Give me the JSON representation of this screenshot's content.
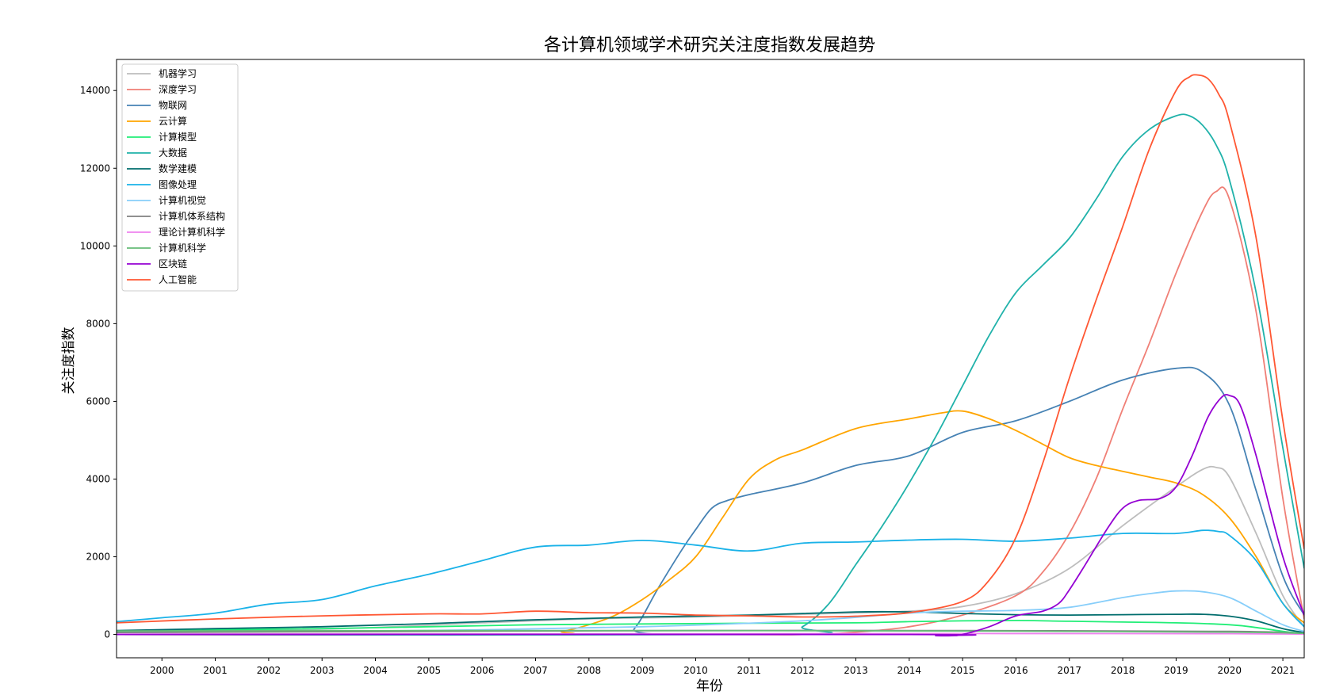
{
  "chart_data": {
    "type": "line",
    "title": "各计算机领域学术研究关注度指数发展趋势",
    "xlabel": "年份",
    "ylabel": "关注度指数",
    "xlim": [
      1999.15,
      2021.4
    ],
    "ylim": [
      -600,
      14800
    ],
    "x_ticks": [
      "2000",
      "2001",
      "2002",
      "2003",
      "2004",
      "2005",
      "2006",
      "2007",
      "2008",
      "2009",
      "2010",
      "2011",
      "2012",
      "2013",
      "2014",
      "2015",
      "2016",
      "2017",
      "2018",
      "2019",
      "2020",
      "2021"
    ],
    "y_ticks": [
      0,
      2000,
      4000,
      6000,
      8000,
      10000,
      12000,
      14000
    ],
    "grid": false,
    "legend_position": "top-left",
    "series": [
      {
        "name": "机器学习",
        "color": "#bdbdbd",
        "points": [
          [
            1999.15,
            80
          ],
          [
            2000,
            90
          ],
          [
            2002,
            110
          ],
          [
            2004,
            180
          ],
          [
            2006,
            300
          ],
          [
            2008,
            400
          ],
          [
            2010,
            450
          ],
          [
            2012,
            520
          ],
          [
            2014,
            600
          ],
          [
            2015,
            720
          ],
          [
            2016,
            1050
          ],
          [
            2017,
            1700
          ],
          [
            2018,
            2800
          ],
          [
            2019,
            3800
          ],
          [
            2019.5,
            4250
          ],
          [
            2019.75,
            4300
          ],
          [
            2020,
            4050
          ],
          [
            2020.5,
            2600
          ],
          [
            2021,
            1000
          ],
          [
            2021.4,
            200
          ]
        ]
      },
      {
        "name": "深度学习",
        "color": "#f07f76",
        "points": [
          [
            1999.15,
            0
          ],
          [
            2010,
            0
          ],
          [
            2012,
            0
          ],
          [
            2013,
            60
          ],
          [
            2014,
            200
          ],
          [
            2015,
            500
          ],
          [
            2016,
            1000
          ],
          [
            2016.5,
            1600
          ],
          [
            2017,
            2600
          ],
          [
            2017.5,
            4000
          ],
          [
            2018,
            5800
          ],
          [
            2018.5,
            7500
          ],
          [
            2019,
            9300
          ],
          [
            2019.5,
            10900
          ],
          [
            2019.75,
            11400
          ],
          [
            2020,
            11200
          ],
          [
            2020.5,
            8300
          ],
          [
            2021,
            3500
          ],
          [
            2021.4,
            400
          ]
        ]
      },
      {
        "name": "物联网",
        "color": "#4682b4",
        "points": [
          [
            1999.15,
            0
          ],
          [
            2008.5,
            0
          ],
          [
            2008.85,
            150
          ],
          [
            2009.3,
            1200
          ],
          [
            2009.75,
            2200
          ],
          [
            2010,
            2700
          ],
          [
            2010.3,
            3250
          ],
          [
            2010.6,
            3450
          ],
          [
            2011,
            3600
          ],
          [
            2012,
            3900
          ],
          [
            2013,
            4350
          ],
          [
            2014,
            4600
          ],
          [
            2015,
            5200
          ],
          [
            2016,
            5500
          ],
          [
            2017,
            6000
          ],
          [
            2018,
            6550
          ],
          [
            2019,
            6850
          ],
          [
            2019.5,
            6750
          ],
          [
            2020,
            5900
          ],
          [
            2020.5,
            3700
          ],
          [
            2021,
            1500
          ],
          [
            2021.4,
            500
          ]
        ]
      },
      {
        "name": "云计算",
        "color": "#ffa500",
        "points": [
          [
            1999.15,
            0
          ],
          [
            2007,
            0
          ],
          [
            2007.5,
            80
          ],
          [
            2008,
            250
          ],
          [
            2008.5,
            500
          ],
          [
            2009,
            900
          ],
          [
            2009.5,
            1400
          ],
          [
            2010,
            2000
          ],
          [
            2010.5,
            3000
          ],
          [
            2011,
            4000
          ],
          [
            2011.5,
            4500
          ],
          [
            2012,
            4750
          ],
          [
            2013,
            5300
          ],
          [
            2014,
            5550
          ],
          [
            2014.6,
            5700
          ],
          [
            2015,
            5750
          ],
          [
            2015.5,
            5550
          ],
          [
            2016,
            5250
          ],
          [
            2016.5,
            4900
          ],
          [
            2017,
            4550
          ],
          [
            2017.5,
            4350
          ],
          [
            2018,
            4200
          ],
          [
            2018.5,
            4050
          ],
          [
            2019,
            3900
          ],
          [
            2019.5,
            3600
          ],
          [
            2020,
            3000
          ],
          [
            2020.5,
            2000
          ],
          [
            2021,
            800
          ],
          [
            2021.4,
            300
          ]
        ]
      },
      {
        "name": "计算模型",
        "color": "#22ee77",
        "points": [
          [
            1999.15,
            80
          ],
          [
            2001,
            120
          ],
          [
            2003,
            150
          ],
          [
            2005,
            200
          ],
          [
            2007,
            250
          ],
          [
            2009,
            270
          ],
          [
            2011,
            290
          ],
          [
            2013,
            300
          ],
          [
            2014,
            330
          ],
          [
            2015,
            350
          ],
          [
            2016,
            360
          ],
          [
            2017,
            340
          ],
          [
            2018,
            320
          ],
          [
            2019,
            300
          ],
          [
            2020,
            250
          ],
          [
            2020.5,
            180
          ],
          [
            2021,
            80
          ],
          [
            2021.4,
            30
          ]
        ]
      },
      {
        "name": "大数据",
        "color": "#20b2aa",
        "points": [
          [
            1999.15,
            0
          ],
          [
            2011.5,
            0
          ],
          [
            2012,
            200
          ],
          [
            2012.5,
            800
          ],
          [
            2013,
            1800
          ],
          [
            2013.5,
            2800
          ],
          [
            2014,
            3900
          ],
          [
            2014.5,
            5100
          ],
          [
            2015,
            6400
          ],
          [
            2015.5,
            7700
          ],
          [
            2016,
            8800
          ],
          [
            2016.5,
            9500
          ],
          [
            2017,
            10200
          ],
          [
            2017.5,
            11200
          ],
          [
            2018,
            12300
          ],
          [
            2018.5,
            13000
          ],
          [
            2019,
            13350
          ],
          [
            2019.25,
            13350
          ],
          [
            2019.5,
            13100
          ],
          [
            2019.75,
            12600
          ],
          [
            2020,
            11700
          ],
          [
            2020.5,
            8800
          ],
          [
            2021,
            4800
          ],
          [
            2021.4,
            1700
          ]
        ]
      },
      {
        "name": "数学建模",
        "color": "#006d6d",
        "points": [
          [
            1999.15,
            100
          ],
          [
            2001,
            150
          ],
          [
            2003,
            200
          ],
          [
            2005,
            280
          ],
          [
            2007,
            380
          ],
          [
            2009,
            450
          ],
          [
            2011,
            500
          ],
          [
            2013,
            580
          ],
          [
            2014,
            580
          ],
          [
            2015,
            540
          ],
          [
            2016,
            510
          ],
          [
            2017,
            500
          ],
          [
            2018,
            510
          ],
          [
            2019,
            520
          ],
          [
            2019.5,
            520
          ],
          [
            2020,
            470
          ],
          [
            2020.5,
            350
          ],
          [
            2021,
            150
          ],
          [
            2021.4,
            50
          ]
        ]
      },
      {
        "name": "图像处理",
        "color": "#1ab2e8",
        "points": [
          [
            1999.15,
            330
          ],
          [
            2000,
            430
          ],
          [
            2001,
            550
          ],
          [
            2002,
            780
          ],
          [
            2003,
            900
          ],
          [
            2004,
            1250
          ],
          [
            2005,
            1550
          ],
          [
            2006,
            1900
          ],
          [
            2007,
            2250
          ],
          [
            2008,
            2300
          ],
          [
            2009,
            2420
          ],
          [
            2010,
            2300
          ],
          [
            2011,
            2150
          ],
          [
            2012,
            2350
          ],
          [
            2013,
            2380
          ],
          [
            2014,
            2430
          ],
          [
            2015,
            2450
          ],
          [
            2016,
            2400
          ],
          [
            2017,
            2480
          ],
          [
            2018,
            2600
          ],
          [
            2019,
            2600
          ],
          [
            2019.5,
            2680
          ],
          [
            2019.8,
            2650
          ],
          [
            2020,
            2550
          ],
          [
            2020.5,
            1900
          ],
          [
            2021,
            800
          ],
          [
            2021.4,
            200
          ]
        ]
      },
      {
        "name": "计算机视觉",
        "color": "#87cefa",
        "points": [
          [
            1999.15,
            50
          ],
          [
            2003,
            80
          ],
          [
            2006,
            120
          ],
          [
            2009,
            200
          ],
          [
            2012,
            350
          ],
          [
            2014,
            550
          ],
          [
            2015,
            600
          ],
          [
            2016,
            620
          ],
          [
            2017,
            700
          ],
          [
            2018,
            950
          ],
          [
            2018.5,
            1050
          ],
          [
            2019,
            1120
          ],
          [
            2019.5,
            1100
          ],
          [
            2020,
            950
          ],
          [
            2020.5,
            600
          ],
          [
            2021,
            250
          ],
          [
            2021.4,
            80
          ]
        ]
      },
      {
        "name": "计算机体系结构",
        "color": "#808080",
        "points": [
          [
            1999.15,
            50
          ],
          [
            2005,
            80
          ],
          [
            2010,
            100
          ],
          [
            2015,
            100
          ],
          [
            2020,
            80
          ],
          [
            2021.4,
            30
          ]
        ]
      },
      {
        "name": "理论计算机科学",
        "color": "#ee82ee",
        "points": [
          [
            1999.15,
            10
          ],
          [
            2005,
            15
          ],
          [
            2010,
            20
          ],
          [
            2015,
            25
          ],
          [
            2020,
            20
          ],
          [
            2021.4,
            10
          ]
        ]
      },
      {
        "name": "计算机科学",
        "color": "#66bb77",
        "points": [
          [
            1999.15,
            90
          ],
          [
            2005,
            100
          ],
          [
            2010,
            100
          ],
          [
            2015,
            90
          ],
          [
            2020,
            60
          ],
          [
            2021.4,
            30
          ]
        ]
      },
      {
        "name": "区块链",
        "color": "#9400d3",
        "points": [
          [
            1999.15,
            0
          ],
          [
            2014,
            0
          ],
          [
            2014.5,
            -30
          ],
          [
            2014.8,
            -30
          ],
          [
            2015,
            0
          ],
          [
            2015.5,
            200
          ],
          [
            2016,
            480
          ],
          [
            2016.5,
            600
          ],
          [
            2016.8,
            800
          ],
          [
            2017,
            1150
          ],
          [
            2017.3,
            1800
          ],
          [
            2017.7,
            2700
          ],
          [
            2018,
            3250
          ],
          [
            2018.3,
            3450
          ],
          [
            2018.7,
            3500
          ],
          [
            2019,
            3800
          ],
          [
            2019.3,
            4600
          ],
          [
            2019.6,
            5600
          ],
          [
            2019.85,
            6100
          ],
          [
            2020,
            6150
          ],
          [
            2020.2,
            5900
          ],
          [
            2020.5,
            4600
          ],
          [
            2021,
            2000
          ],
          [
            2021.4,
            500
          ]
        ]
      },
      {
        "name": "人工智能",
        "color": "#ff5733",
        "points": [
          [
            1999.15,
            300
          ],
          [
            2001,
            400
          ],
          [
            2003,
            480
          ],
          [
            2005,
            530
          ],
          [
            2006,
            530
          ],
          [
            2007,
            600
          ],
          [
            2008,
            560
          ],
          [
            2009,
            550
          ],
          [
            2010,
            500
          ],
          [
            2011,
            480
          ],
          [
            2012,
            450
          ],
          [
            2013,
            470
          ],
          [
            2014,
            560
          ],
          [
            2015,
            850
          ],
          [
            2015.5,
            1400
          ],
          [
            2016,
            2500
          ],
          [
            2016.5,
            4400
          ],
          [
            2017,
            6600
          ],
          [
            2017.5,
            8600
          ],
          [
            2018,
            10500
          ],
          [
            2018.5,
            12500
          ],
          [
            2019,
            14000
          ],
          [
            2019.25,
            14350
          ],
          [
            2019.4,
            14400
          ],
          [
            2019.6,
            14300
          ],
          [
            2019.8,
            13900
          ],
          [
            2020,
            13200
          ],
          [
            2020.5,
            10200
          ],
          [
            2021,
            5500
          ],
          [
            2021.4,
            2200
          ]
        ]
      }
    ]
  }
}
